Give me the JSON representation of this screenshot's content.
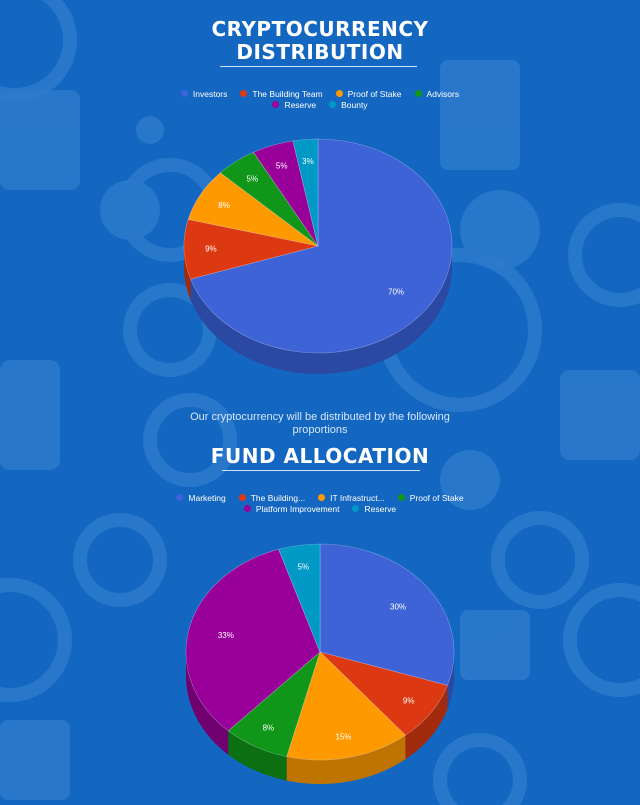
{
  "colors": {
    "background": "#1467c0",
    "pattern": "#2a79cc"
  },
  "subtitle": "Our cryptocurrency will be distributed by the following proportions",
  "chart_data": [
    {
      "type": "pie",
      "title_lines": [
        "CRYPTOCURRENCY",
        "DISTRIBUTION"
      ],
      "slices": [
        {
          "label": "Investors",
          "value": 70,
          "display": "70%",
          "color": "#3d63d6",
          "side": "#2b48a3"
        },
        {
          "label": "The Building Team",
          "value": 9,
          "display": "9%",
          "color": "#dc3912",
          "side": "#a22a0d"
        },
        {
          "label": "Proof of Stake",
          "value": 8,
          "display": "8%",
          "color": "#ff9900",
          "side": "#bf7300"
        },
        {
          "label": "Advisors",
          "value": 5,
          "display": "5%",
          "color": "#109618",
          "side": "#0c7012"
        },
        {
          "label": "Reserve",
          "value": 5,
          "display": "5%",
          "color": "#990099",
          "side": "#700070"
        },
        {
          "label": "Bounty",
          "value": 3,
          "display": "3%",
          "color": "#0099c6",
          "side": "#007395"
        }
      ],
      "legend_rows": [
        [
          0,
          1,
          2,
          3
        ],
        [
          4,
          5
        ]
      ],
      "legend_placement": "top"
    },
    {
      "type": "pie",
      "title_lines": [
        "FUND ALLOCATION"
      ],
      "slices": [
        {
          "label": "Marketing",
          "value": 30,
          "display": "30%",
          "color": "#3d63d6",
          "side": "#2b48a3"
        },
        {
          "label": "The Building...",
          "value": 9,
          "display": "9%",
          "color": "#dc3912",
          "side": "#a22a0d"
        },
        {
          "label": "IT Infrastruct...",
          "value": 15,
          "display": "15%",
          "color": "#ff9900",
          "side": "#bf7300"
        },
        {
          "label": "Proof of Stake",
          "value": 8,
          "display": "8%",
          "color": "#109618",
          "side": "#0c7012"
        },
        {
          "label": "Platform Improvement",
          "value": 33,
          "display": "33%",
          "color": "#990099",
          "side": "#700070"
        },
        {
          "label": "Reserve",
          "value": 5,
          "display": "5%",
          "color": "#0099c6",
          "side": "#007395"
        }
      ],
      "legend_rows": [
        [
          0,
          1,
          2,
          3
        ],
        [
          4,
          5
        ]
      ],
      "legend_placement": "top"
    }
  ]
}
